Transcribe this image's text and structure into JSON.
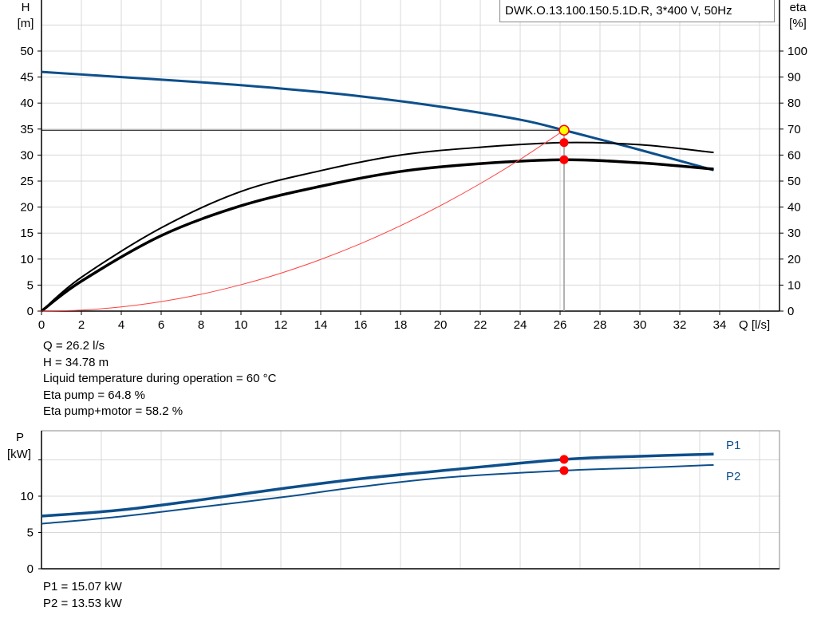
{
  "chart_data": [
    {
      "type": "line",
      "title": "DWK.O.13.100.150.5.1D.R, 3*400 V, 50Hz",
      "xlabel": "Q [l/s]",
      "ylabel": "H\n[m]",
      "ylabel_right": "eta\n[%]",
      "xlim": [
        0,
        37
      ],
      "ylim": [
        0,
        60
      ],
      "ylim_right": [
        0,
        120
      ],
      "xticks": [
        0,
        2,
        4,
        6,
        8,
        10,
        12,
        14,
        16,
        18,
        20,
        22,
        24,
        26,
        28,
        30,
        32,
        34
      ],
      "yticks": [
        0,
        5,
        10,
        15,
        20,
        25,
        30,
        35,
        40,
        45,
        50
      ],
      "yticks_right": [
        0,
        10,
        20,
        30,
        40,
        50,
        60,
        70,
        80,
        90,
        100
      ],
      "grid": true,
      "series": [
        {
          "axis": "left",
          "color": "#0d4f8b",
          "x": [
            0,
            4,
            8,
            12,
            16,
            20,
            24,
            26.2,
            28,
            30,
            33.7
          ],
          "y": [
            46,
            45,
            44,
            42.8,
            41.3,
            39.3,
            36.8,
            34.78,
            33,
            31,
            27.1
          ]
        },
        {
          "axis": "right",
          "color": "#000000",
          "x": [
            0,
            2,
            6,
            10,
            14,
            18,
            22,
            26.2,
            30,
            33.7
          ],
          "y": [
            0,
            13,
            32,
            46,
            54,
            60,
            63,
            64.8,
            64,
            61
          ]
        },
        {
          "axis": "right",
          "color": "#000000",
          "x": [
            0,
            2,
            6,
            10,
            14,
            18,
            22,
            26.2,
            30,
            33.7
          ],
          "y": [
            0,
            11.5,
            29,
            40.5,
            48,
            53.7,
            56.7,
            58.2,
            57,
            54.6
          ]
        },
        {
          "axis": "left",
          "color": "#ff4040",
          "x": [
            0,
            2,
            4,
            6,
            8,
            10,
            12,
            14,
            16,
            18,
            20,
            22,
            24,
            26.2
          ],
          "y": [
            0,
            0.2,
            0.81,
            1.82,
            3.24,
            5.07,
            7.29,
            9.93,
            12.97,
            16.42,
            20.27,
            24.52,
            29.18,
            34.78
          ]
        }
      ],
      "operating_point": {
        "Q": 26.2,
        "H": 34.78,
        "eta_pump": 64.8,
        "eta_total": 58.2
      }
    },
    {
      "type": "line",
      "ylabel": "P\n[kW]",
      "xlim": [
        0,
        37
      ],
      "ylim": [
        0,
        19
      ],
      "yticks": [
        0,
        5,
        10
      ],
      "ytick_unlabeled": [
        15
      ],
      "grid": true,
      "series": [
        {
          "name": "P1",
          "color": "#0d4f8b",
          "x": [
            0,
            4,
            8,
            12.2,
            16,
            20.4,
            26.2,
            30,
            33.7
          ],
          "y": [
            7.25,
            8.1,
            9.5,
            11.1,
            12.4,
            13.6,
            15.07,
            15.5,
            15.8
          ]
        },
        {
          "name": "P2",
          "color": "#0d4f8b",
          "x": [
            0,
            4,
            8,
            12.2,
            16,
            20.4,
            26.2,
            30,
            33.7
          ],
          "y": [
            6.2,
            7.2,
            8.5,
            9.9,
            11.3,
            12.6,
            13.53,
            13.9,
            14.3
          ]
        }
      ],
      "operating_point": {
        "Q": 26.2,
        "P1": 15.07,
        "P2": 13.53
      }
    }
  ],
  "info": {
    "q": "Q = 26.2 l/s",
    "h": "H = 34.78 m",
    "temp": "Liquid temperature during operation = 60 °C",
    "eta_pump": "Eta pump = 64.8 %",
    "eta_total": "Eta pump+motor = 58.2 %",
    "p1": "P1 = 15.07 kW",
    "p2": "P2 = 13.53 kW"
  }
}
